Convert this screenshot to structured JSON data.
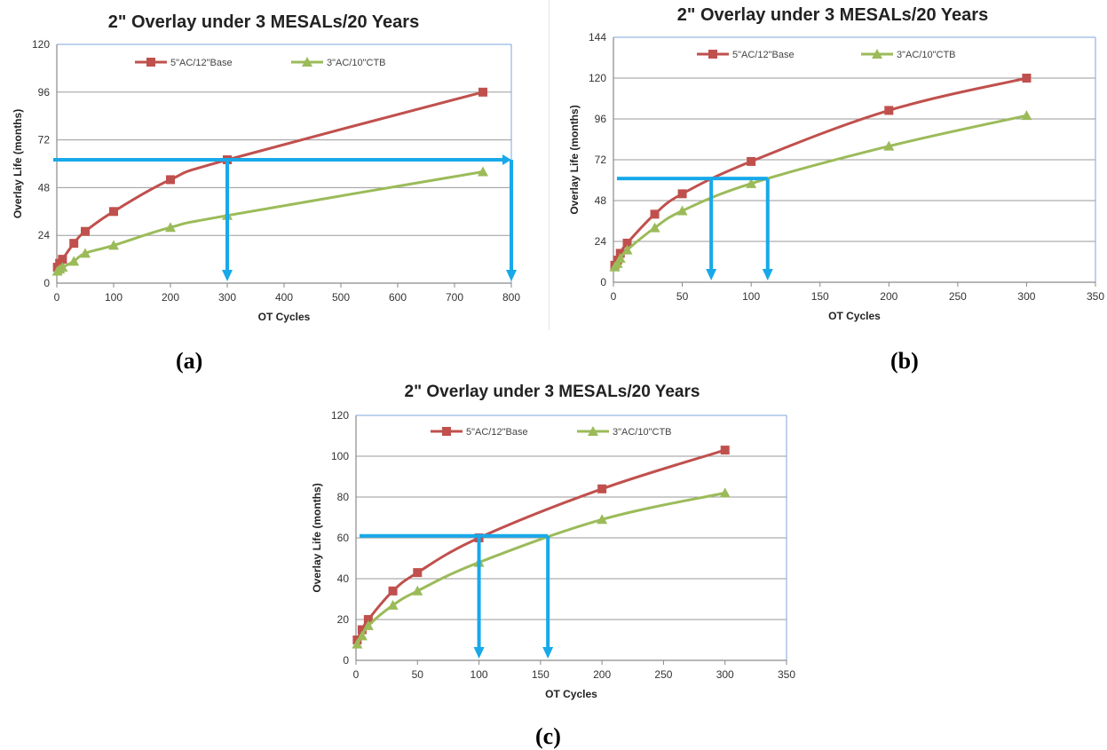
{
  "panel_labels": [
    "(a)",
    "(b)",
    "(c)"
  ],
  "colors": {
    "series1": "#c0504d",
    "series2": "#9bbb59",
    "arrow": "#17a9e9",
    "grid": "#9a9a9a",
    "axis": "#8a8a8a",
    "plot_border": "#7fa6d8"
  },
  "chart_data": [
    {
      "type": "line",
      "title": "2\" Overlay under 3 MESALs/20 Years",
      "xlabel": "OT Cycles",
      "ylabel": "Overlay Life (months)",
      "xlim": [
        0,
        800
      ],
      "ylim": [
        0,
        120
      ],
      "xticks": [
        0,
        100,
        200,
        300,
        400,
        500,
        600,
        700,
        800
      ],
      "yticks": [
        0,
        24,
        48,
        72,
        96,
        120
      ],
      "grid": "horizontal",
      "legend": "top",
      "series": [
        {
          "name": "5\"AC/12\"Base",
          "marker": "square",
          "x": [
            1,
            5,
            10,
            30,
            50,
            100,
            200,
            300,
            750
          ],
          "y": [
            8,
            10,
            12,
            20,
            26,
            36,
            52,
            62,
            96
          ]
        },
        {
          "name": "3\"AC/10\"CTB",
          "marker": "triangle",
          "x": [
            1,
            5,
            10,
            30,
            50,
            100,
            200,
            300,
            750
          ],
          "y": [
            6,
            7,
            8,
            11,
            15,
            19,
            28,
            34,
            56
          ]
        }
      ],
      "annotations": {
        "arrow_y": 62,
        "arrow_x": [
          300,
          800
        ]
      }
    },
    {
      "type": "line",
      "title": "2\" Overlay under 3 MESALs/20 Years",
      "xlabel": "OT Cycles",
      "ylabel": "Overlay Life (months)",
      "xlim": [
        0,
        350
      ],
      "ylim": [
        0,
        144
      ],
      "xticks": [
        0,
        50,
        100,
        150,
        200,
        250,
        300,
        350
      ],
      "yticks": [
        0,
        24,
        48,
        72,
        96,
        120,
        144
      ],
      "grid": "horizontal",
      "legend": "top",
      "series": [
        {
          "name": "5\"AC/12\"Base",
          "marker": "square",
          "x": [
            1,
            3,
            5,
            10,
            30,
            50,
            100,
            200,
            300
          ],
          "y": [
            10,
            13,
            17,
            23,
            40,
            52,
            71,
            101,
            120
          ]
        },
        {
          "name": "3\"AC/10\"CTB",
          "marker": "triangle",
          "x": [
            1,
            3,
            5,
            10,
            30,
            50,
            100,
            200,
            300
          ],
          "y": [
            9,
            11,
            14,
            19,
            32,
            42,
            58,
            80,
            98
          ]
        }
      ],
      "annotations": {
        "arrow_y": 61,
        "arrow_x": [
          71,
          112
        ]
      }
    },
    {
      "type": "line",
      "title": "2\" Overlay under 3 MESALs/20 Years",
      "xlabel": "OT Cycles",
      "ylabel": "Overlay Life (months)",
      "xlim": [
        0,
        350
      ],
      "ylim": [
        0,
        120
      ],
      "xticks": [
        0,
        50,
        100,
        150,
        200,
        250,
        300,
        350
      ],
      "yticks": [
        0,
        20,
        40,
        60,
        80,
        100,
        120
      ],
      "grid": "horizontal",
      "legend": "top",
      "series": [
        {
          "name": "5\"AC/12\"Base",
          "marker": "square",
          "x": [
            1,
            5,
            10,
            30,
            50,
            100,
            200,
            300
          ],
          "y": [
            10,
            15,
            20,
            34,
            43,
            60,
            84,
            103
          ]
        },
        {
          "name": "3\"AC/10\"CTB",
          "marker": "triangle",
          "x": [
            1,
            5,
            10,
            30,
            50,
            100,
            200,
            300
          ],
          "y": [
            8,
            12,
            17,
            27,
            34,
            48,
            69,
            82
          ]
        }
      ],
      "annotations": {
        "arrow_y": 61,
        "arrow_x": [
          100,
          156
        ]
      }
    }
  ]
}
